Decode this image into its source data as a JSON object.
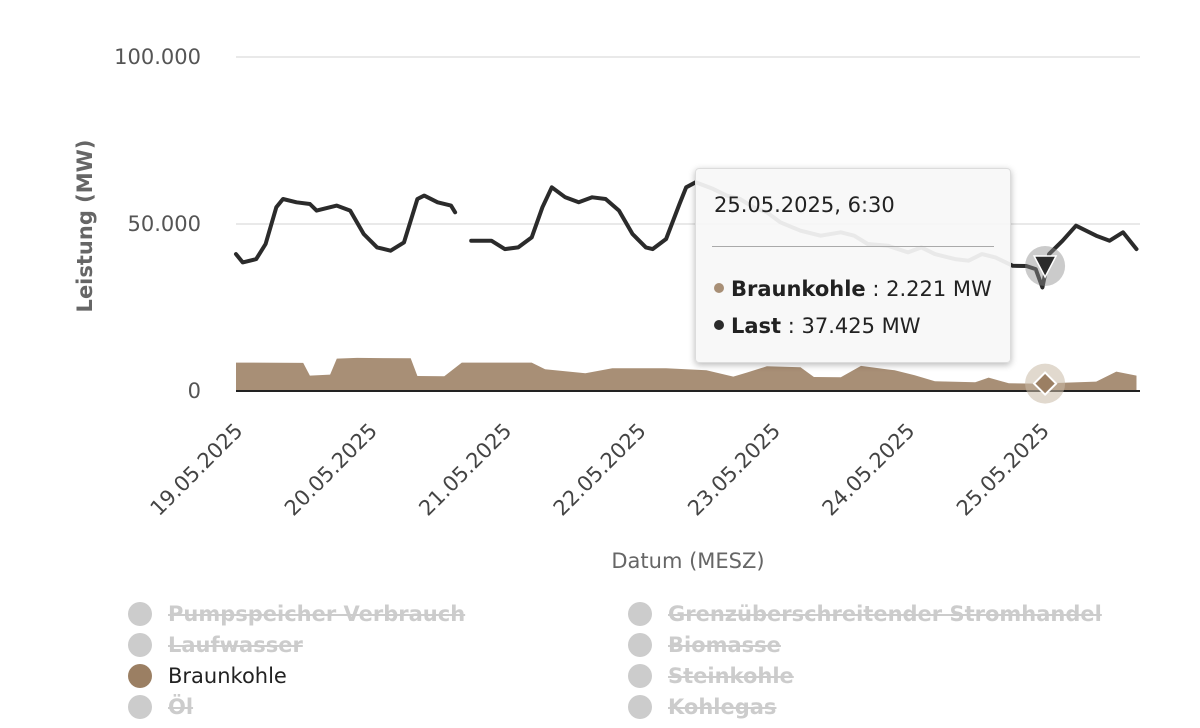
{
  "chart_data": {
    "type": "area",
    "xlabel": "Datum (MESZ)",
    "ylabel": "Leistung (MW)",
    "ylim": [
      0,
      100000
    ],
    "y_ticks": [
      "0",
      "50.000",
      "100.000"
    ],
    "x_ticks": [
      "19.05.2025",
      "20.05.2025",
      "21.05.2025",
      "22.05.2025",
      "23.05.2025",
      "24.05.2025",
      "25.05.2025"
    ],
    "x_unit": "days since 19.05.2025 00:00",
    "series": [
      {
        "name": "Braunkohle",
        "type": "area",
        "color": "#a88f76",
        "points": [
          [
            0,
            8500
          ],
          [
            0.5,
            8400
          ],
          [
            0.55,
            4600
          ],
          [
            0.7,
            4900
          ],
          [
            0.75,
            9700
          ],
          [
            0.9,
            9900
          ],
          [
            1.3,
            9800
          ],
          [
            1.35,
            4500
          ],
          [
            1.55,
            4400
          ],
          [
            1.68,
            8500
          ],
          [
            2.2,
            8500
          ],
          [
            2.3,
            6500
          ],
          [
            2.6,
            5300
          ],
          [
            2.8,
            6800
          ],
          [
            3.2,
            6800
          ],
          [
            3.5,
            6200
          ],
          [
            3.7,
            4300
          ],
          [
            3.8,
            5500
          ],
          [
            3.95,
            7400
          ],
          [
            4.2,
            7100
          ],
          [
            4.3,
            4200
          ],
          [
            4.5,
            4100
          ],
          [
            4.65,
            7500
          ],
          [
            4.9,
            6200
          ],
          [
            5.05,
            4700
          ],
          [
            5.2,
            2900
          ],
          [
            5.5,
            2600
          ],
          [
            5.6,
            4000
          ],
          [
            5.75,
            2300
          ],
          [
            5.95,
            2221
          ],
          [
            6.1,
            2400
          ],
          [
            6.4,
            2800
          ],
          [
            6.55,
            5800
          ],
          [
            6.7,
            4600
          ]
        ],
        "legend_on": true
      },
      {
        "name": "Last",
        "type": "line",
        "color": "#2b2b2b",
        "points": [
          [
            0,
            41000
          ],
          [
            0.05,
            38500
          ],
          [
            0.15,
            39500
          ],
          [
            0.22,
            44000
          ],
          [
            0.3,
            55000
          ],
          [
            0.35,
            57500
          ],
          [
            0.45,
            56500
          ],
          [
            0.55,
            56000
          ],
          [
            0.6,
            54000
          ],
          [
            0.75,
            55500
          ],
          [
            0.85,
            54000
          ],
          [
            0.95,
            47000
          ],
          [
            1.05,
            43000
          ],
          [
            1.15,
            42000
          ],
          [
            1.25,
            44500
          ],
          [
            1.3,
            51000
          ],
          [
            1.35,
            57500
          ],
          [
            1.4,
            58500
          ],
          [
            1.5,
            56500
          ],
          [
            1.6,
            55500
          ],
          [
            1.63,
            53500
          ],
          null,
          [
            1.75,
            45000
          ],
          [
            1.9,
            45000
          ],
          [
            2.0,
            42500
          ],
          [
            2.1,
            43000
          ],
          [
            2.2,
            46000
          ],
          [
            2.28,
            55000
          ],
          [
            2.35,
            61000
          ],
          [
            2.45,
            58000
          ],
          [
            2.55,
            56500
          ],
          [
            2.65,
            58000
          ],
          [
            2.75,
            57500
          ],
          [
            2.85,
            54000
          ],
          [
            2.95,
            47000
          ],
          [
            3.05,
            43000
          ],
          [
            3.1,
            42500
          ],
          [
            3.2,
            45500
          ],
          [
            3.3,
            56000
          ],
          [
            3.35,
            61000
          ],
          [
            3.42,
            62500
          ],
          [
            3.55,
            60500
          ],
          [
            3.65,
            58500
          ],
          [
            3.75,
            57500
          ],
          [
            3.85,
            55000
          ],
          [
            3.95,
            53500
          ],
          [
            4.05,
            50500
          ],
          [
            4.2,
            48000
          ],
          [
            4.35,
            46500
          ],
          [
            4.5,
            47500
          ],
          [
            4.6,
            46500
          ],
          [
            4.7,
            44000
          ],
          [
            4.85,
            43500
          ],
          [
            5.0,
            41500
          ],
          [
            5.1,
            43000
          ],
          [
            5.2,
            41000
          ],
          [
            5.35,
            39500
          ],
          [
            5.45,
            39000
          ],
          [
            5.55,
            41000
          ],
          [
            5.65,
            40000
          ],
          [
            5.78,
            37500
          ],
          [
            5.88,
            37425
          ],
          [
            5.95,
            36500
          ],
          [
            6.0,
            31000
          ],
          [
            6.05,
            41000
          ],
          [
            6.15,
            45000
          ],
          [
            6.25,
            49500
          ],
          [
            6.4,
            46500
          ],
          [
            6.5,
            45000
          ],
          [
            6.6,
            47500
          ],
          [
            6.7,
            42500
          ]
        ],
        "legend_on": true
      }
    ],
    "tooltip": {
      "date": "25.05.2025, 6:30",
      "x": 6.02,
      "rows": [
        {
          "name": "Braunkohle",
          "value": "2.221 MW",
          "color": "#a88f76",
          "y": 2221
        },
        {
          "name": "Last",
          "value": "37.425 MW",
          "color": "#2b2b2b",
          "y": 37425
        }
      ]
    },
    "legend": {
      "left": [
        {
          "label": "Pumpspeicher Verbrauch",
          "active": false,
          "color": "#cccccc"
        },
        {
          "label": "Laufwasser",
          "active": false,
          "color": "#cccccc"
        },
        {
          "label": "Braunkohle",
          "active": true,
          "color": "#9b7f63"
        },
        {
          "label": "Öl",
          "active": false,
          "color": "#cccccc"
        }
      ],
      "right": [
        {
          "label": "Grenzüberschreitender Stromhandel",
          "active": false,
          "color": "#cccccc"
        },
        {
          "label": "Biomasse",
          "active": false,
          "color": "#cccccc"
        },
        {
          "label": "Steinkohle",
          "active": false,
          "color": "#cccccc"
        },
        {
          "label": "Kohlegas",
          "active": false,
          "color": "#cccccc"
        }
      ]
    }
  }
}
